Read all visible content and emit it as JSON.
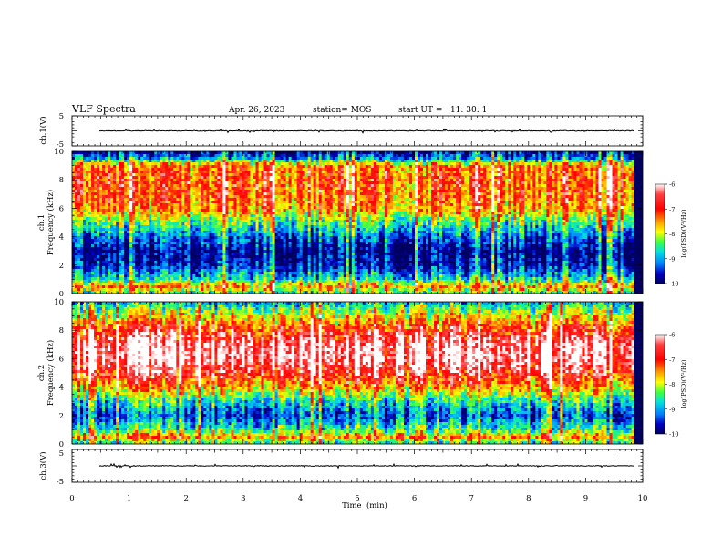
{
  "header": {
    "title": "VLF Spectra",
    "date": "Apr. 26, 2023",
    "station": "station= MOS",
    "start": "start UT =   11: 30: 1"
  },
  "colors": {
    "background": "#ffffff",
    "axis": "#000000",
    "colormap": [
      "#ffffff",
      "#ff3030",
      "#ff0000",
      "#ffa000",
      "#ffff00",
      "#40ff40",
      "#00e0e0",
      "#0080ff",
      "#0000c0",
      "#000060"
    ]
  },
  "chart_data": [
    {
      "type": "line",
      "panel": "ch1-waveform",
      "ylabel": "ch.1(V)",
      "ylim": [
        -5,
        5
      ],
      "yticks": [
        "5",
        "-5"
      ],
      "trace_level": 0,
      "xlim": [
        0,
        10
      ]
    },
    {
      "type": "heatmap",
      "panel": "ch1-spectrogram",
      "ylabel": "ch.1\nFrequency (kHz)",
      "ylabel_line1": "ch.1",
      "ylabel_line2": "Frequency (kHz)",
      "ylim": [
        0,
        10
      ],
      "yticks": [
        "0",
        "2",
        "4",
        "6",
        "8",
        "10"
      ],
      "xlim": [
        0,
        9.85
      ],
      "colorbar": {
        "label": "log(PSD)(V²/Hz)",
        "range": [
          -10,
          -6
        ],
        "ticks": [
          "-6",
          "-7",
          "-8",
          "-9",
          "-10"
        ]
      },
      "freq_profile_kHz": [
        0,
        0.5,
        1,
        2,
        3,
        4,
        5,
        6,
        7,
        8,
        9,
        9.5,
        10
      ],
      "log_psd_profile": [
        -8.5,
        -7.2,
        -8.6,
        -9.6,
        -9.8,
        -9.2,
        -8.3,
        -7.3,
        -7.1,
        -7.0,
        -7.2,
        -9.0,
        -9.7
      ]
    },
    {
      "type": "heatmap",
      "panel": "ch2-spectrogram",
      "ylabel": "ch.2\nFrequency (kHz)",
      "ylabel_line1": "ch.2",
      "ylabel_line2": "Frequency (kHz)",
      "ylim": [
        0,
        10
      ],
      "yticks": [
        "0",
        "2",
        "4",
        "6",
        "8",
        "10"
      ],
      "xlim": [
        0,
        9.85
      ],
      "colorbar": {
        "label": "log(PSD)(V²/Hz)",
        "range": [
          -10,
          -6
        ],
        "ticks": [
          "-6",
          "-7",
          "-8",
          "-9",
          "-10"
        ]
      },
      "freq_profile_kHz": [
        0,
        0.5,
        1,
        2,
        3,
        4,
        5,
        6,
        7,
        8,
        9,
        9.5,
        10
      ],
      "log_psd_profile": [
        -8.5,
        -7.3,
        -8.4,
        -9.3,
        -8.6,
        -7.4,
        -6.6,
        -6.1,
        -6.2,
        -6.8,
        -7.7,
        -8.2,
        -8.9
      ]
    },
    {
      "type": "line",
      "panel": "ch3-waveform",
      "ylabel": "ch.3(V)",
      "ylim": [
        -5,
        5
      ],
      "yticks": [
        "5",
        "-5"
      ],
      "trace_level": 0,
      "xlim": [
        0,
        10
      ]
    }
  ],
  "x_axis": {
    "label": "Time  (min)",
    "range": [
      0,
      10
    ],
    "ticks": [
      "0",
      "1",
      "2",
      "3",
      "4",
      "5",
      "6",
      "7",
      "8",
      "9",
      "10"
    ]
  }
}
